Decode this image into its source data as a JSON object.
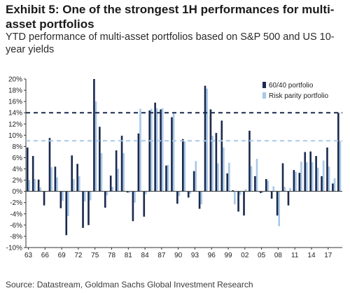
{
  "header": {
    "title": "Exhibit 5: One of the strongest 1H performances for multi-asset portfolios",
    "subtitle": "YTD performance of multi-asset portfolios based on S&P 500 and US 10-year yields"
  },
  "footer": {
    "source": "Source: Datastream, Goldman Sachs Global Investment Research"
  },
  "colors": {
    "series_6040": "#1b2a4e",
    "series_risk_parity": "#a8c8e8",
    "reference_line_6040": "#1b2a4e",
    "reference_line_risk_parity": "#a8c8e8"
  },
  "chart_data": {
    "type": "bar",
    "title": "",
    "xlabel": "",
    "ylabel": "",
    "ylim": [
      -10,
      20
    ],
    "y_ticks": [
      "-10%",
      "-8%",
      "-6%",
      "-4%",
      "-2%",
      "0%",
      "2%",
      "4%",
      "6%",
      "8%",
      "10%",
      "12%",
      "14%",
      "16%",
      "18%",
      "20%"
    ],
    "x_tick_labels": [
      "63",
      "66",
      "69",
      "72",
      "75",
      "78",
      "81",
      "84",
      "87",
      "90",
      "93",
      "96",
      "99",
      "02",
      "05",
      "08",
      "11",
      "14",
      "17"
    ],
    "categories": [
      "1963",
      "1964",
      "1965",
      "1966",
      "1967",
      "1968",
      "1969",
      "1970",
      "1971",
      "1972",
      "1973",
      "1974",
      "1975",
      "1976",
      "1977",
      "1978",
      "1979",
      "1980",
      "1981",
      "1982",
      "1983",
      "1984",
      "1985",
      "1986",
      "1987",
      "1988",
      "1989",
      "1990",
      "1991",
      "1992",
      "1993",
      "1994",
      "1995",
      "1996",
      "1997",
      "1998",
      "1999",
      "2000",
      "2001",
      "2002",
      "2003",
      "2004",
      "2005",
      "2006",
      "2007",
      "2008",
      "2009",
      "2010",
      "2011",
      "2012",
      "2013",
      "2014",
      "2015",
      "2016",
      "2017",
      "2018",
      "2019"
    ],
    "series": [
      {
        "name": "60/40 portfolio",
        "values": [
          7.8,
          6.3,
          2.1,
          -2.5,
          9.5,
          4.4,
          -3.0,
          -7.8,
          6.4,
          4.9,
          -6.5,
          -6.0,
          20.0,
          11.5,
          -2.9,
          2.8,
          7.3,
          9.9,
          -0.2,
          -5.3,
          10.3,
          -4.5,
          14.4,
          15.8,
          14.6,
          4.6,
          13.2,
          -2.2,
          9.3,
          -1.1,
          3.6,
          -3.1,
          18.8,
          14.6,
          10.4,
          12.6,
          3.2,
          0.2,
          -3.6,
          -4.3,
          10.8,
          2.7,
          -0.3,
          2.2,
          -1.3,
          -4.3,
          5.0,
          -2.5,
          3.8,
          3.3,
          7.0,
          7.1,
          6.3,
          2.7,
          7.8,
          1.4,
          14.0
        ],
        "color": "#1b2a4e"
      },
      {
        "name": "Risk parity portfolio",
        "values": [
          2.0,
          2.2,
          0.7,
          0.0,
          4.3,
          2.5,
          -1.7,
          -4.4,
          2.2,
          2.7,
          -1.8,
          -1.6,
          16.0,
          6.8,
          -0.7,
          0.8,
          4.0,
          6.8,
          -0.3,
          -2.0,
          14.7,
          -0.5,
          14.7,
          14.8,
          14.8,
          4.7,
          14.0,
          -0.8,
          8.9,
          -0.4,
          5.4,
          -2.3,
          18.3,
          9.9,
          5.0,
          7.8,
          5.1,
          -2.3,
          -0.6,
          0.4,
          4.5,
          5.8,
          -0.3,
          1.9,
          0.9,
          -6.2,
          0.8,
          0.6,
          3.5,
          5.3,
          5.2,
          5.2,
          4.2,
          5.5,
          4.4,
          2.3,
          9.0
        ]
      }
    ],
    "reference_lines": [
      {
        "series": "60/40 portfolio",
        "value": 14.0,
        "style": "dashed"
      },
      {
        "series": "Risk parity portfolio",
        "value": 9.0,
        "style": "dashed"
      }
    ],
    "legend": {
      "placement": "top-right",
      "entries": [
        "60/40 portfolio",
        "Risk parity portfolio"
      ]
    },
    "grid": false
  }
}
